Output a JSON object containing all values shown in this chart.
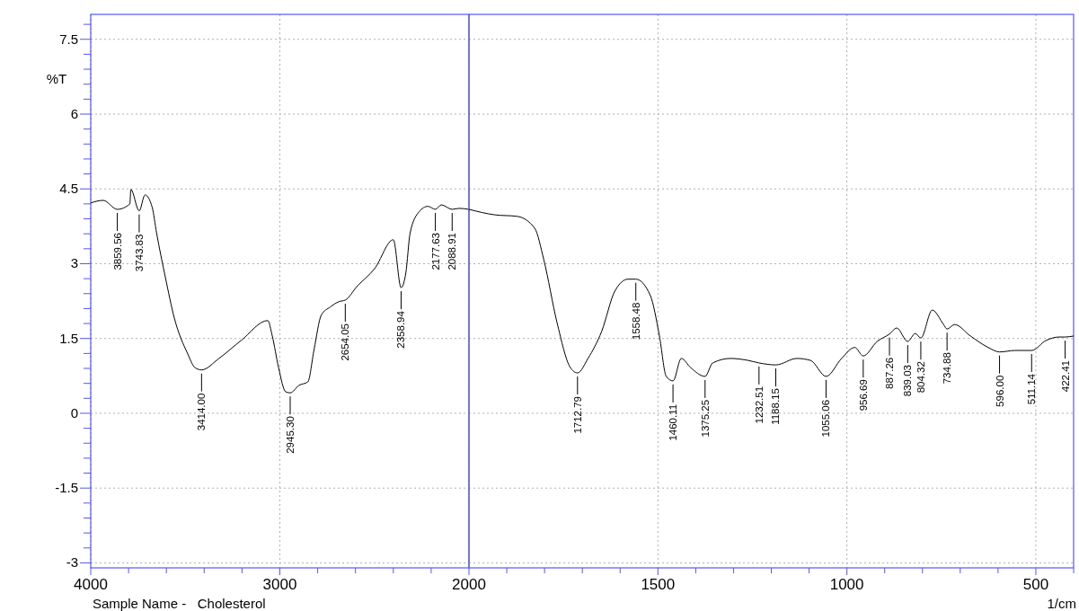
{
  "chart_data": [
    {
      "type": "line",
      "ylabel": "%T",
      "xlim": [
        4000,
        2000
      ],
      "ylim": [
        -3.1,
        8.0
      ],
      "xticks": [
        4000,
        {
          "value": 3800,
          "label": null
        },
        {
          "value": 3600,
          "label": null
        },
        {
          "value": 3400,
          "label": null
        },
        {
          "value": 3200,
          "label": null
        },
        3000,
        {
          "value": 2800,
          "label": null
        },
        {
          "value": 2600,
          "label": null
        },
        {
          "value": 2400,
          "label": null
        },
        {
          "value": 2200,
          "label": null
        }
      ],
      "yticks": [
        {
          "value": -3,
          "label": "-3"
        },
        {
          "value": -2.7,
          "label": null
        },
        {
          "value": -2.4,
          "label": null
        },
        {
          "value": -2.1,
          "label": null
        },
        {
          "value": -1.8,
          "label": null
        },
        -1.5,
        {
          "value": -1.2,
          "label": null
        },
        {
          "value": -0.9,
          "label": null
        },
        {
          "value": -0.6,
          "label": null
        },
        {
          "value": -0.3,
          "label": null
        },
        0,
        {
          "value": 0.3,
          "label": null
        },
        {
          "value": 0.6,
          "label": null
        },
        {
          "value": 0.9,
          "label": null
        },
        {
          "value": 1.2,
          "label": null
        },
        1.5,
        {
          "value": 1.8,
          "label": null
        },
        {
          "value": 2.1,
          "label": null
        },
        {
          "value": 2.4,
          "label": null
        },
        {
          "value": 2.7,
          "label": null
        },
        3,
        {
          "value": 3.3,
          "label": null
        },
        {
          "value": 3.6,
          "label": null
        },
        {
          "value": 3.9,
          "label": null
        },
        {
          "value": 4.2,
          "label": null
        },
        4.5,
        {
          "value": 4.8,
          "label": null
        },
        {
          "value": 5.1,
          "label": null
        },
        {
          "value": 5.4,
          "label": null
        },
        {
          "value": 5.7,
          "label": null
        },
        6,
        {
          "value": 6.3,
          "label": null
        },
        {
          "value": 6.6,
          "label": null
        },
        {
          "value": 6.9,
          "label": null
        },
        {
          "value": 7.2,
          "label": null
        },
        7.5,
        {
          "value": 7.8,
          "label": null
        }
      ],
      "grid": true,
      "marker": "none",
      "line_style": "solid",
      "series": [
        {
          "color": "#000000",
          "x": [
            4000,
            3934,
            3859.56,
            3793,
            3788,
            3743.83,
            3713,
            3675,
            3652,
            3605,
            3558,
            3487,
            3450,
            3414,
            3322,
            3205,
            3064,
            3040,
            3007,
            2969,
            2945.3,
            2899,
            2852,
            2819,
            2781,
            2734,
            2687,
            2654.05,
            2593,
            2499,
            2400,
            2358.94,
            2334,
            2311,
            2264,
            2217,
            2177.63,
            2146,
            2088.91,
            2052,
            2000
          ],
          "values": [
            4.22,
            4.27,
            4.09,
            4.2,
            4.49,
            4.06,
            4.38,
            4.13,
            3.62,
            2.72,
            1.91,
            1.19,
            0.92,
            0.87,
            1.1,
            1.46,
            1.86,
            1.55,
            0.92,
            0.43,
            0.41,
            0.56,
            0.63,
            1.28,
            1.97,
            2.13,
            2.24,
            2.27,
            2.54,
            2.9,
            3.48,
            2.52,
            2.81,
            3.62,
            4.04,
            4.15,
            4.09,
            4.18,
            4.09,
            4.11,
            4.09
          ]
        }
      ],
      "annotations": [
        {
          "text": "3859.56",
          "x": 3859.56,
          "y": 4.09
        },
        {
          "text": "3743.83",
          "x": 3743.83,
          "y": 4.06
        },
        {
          "text": "3414.00",
          "x": 3414,
          "y": 0.87
        },
        {
          "text": "2945.30",
          "x": 2945.3,
          "y": 0.41
        },
        {
          "text": "2654.05",
          "x": 2654.05,
          "y": 2.27
        },
        {
          "text": "2358.94",
          "x": 2358.94,
          "y": 2.52
        },
        {
          "text": "2177.63",
          "x": 2177.63,
          "y": 4.09
        },
        {
          "text": "2088.91",
          "x": 2088.91,
          "y": 4.09
        },
        "Sample Name -   Cholesterol"
      ]
    },
    {
      "type": "line",
      "xlabel": "1/cm",
      "xlim": [
        2000,
        400
      ],
      "ylim": [
        -3.1,
        8.0
      ],
      "tick_labels": "x",
      "xticks": [
        2000,
        {
          "value": 1900,
          "label": null
        },
        {
          "value": 1800,
          "label": null
        },
        {
          "value": 1700,
          "label": null
        },
        {
          "value": 1600,
          "label": null
        },
        1500,
        {
          "value": 1400,
          "label": null
        },
        {
          "value": 1300,
          "label": null
        },
        {
          "value": 1200,
          "label": null
        },
        {
          "value": 1100,
          "label": null
        },
        1000,
        {
          "value": 900,
          "label": null
        },
        {
          "value": 800,
          "label": null
        },
        {
          "value": 700,
          "label": null
        },
        {
          "value": 600,
          "label": null
        },
        500,
        {
          "value": 400,
          "label": null
        }
      ],
      "yticks": [
        -3,
        -1.5,
        0,
        1.5,
        3,
        4.5,
        6,
        7.5
      ],
      "grid": true,
      "marker": "none",
      "line_style": "solid",
      "series": [
        {
          "color": "#000000",
          "x": [
            2000,
            1932,
            1873,
            1826,
            1802,
            1767,
            1732,
            1712.79,
            1685,
            1649,
            1614,
            1579,
            1558.48,
            1520,
            1496,
            1478,
            1460.11,
            1438,
            1414,
            1375.25,
            1355,
            1308,
            1261,
            1232.51,
            1188.15,
            1132,
            1096,
            1055.06,
            1014,
            979,
            956.69,
            920,
            887.26,
            868,
            839.03,
            819,
            804.32,
            774,
            744,
            734.88,
            715,
            673,
            626,
            596,
            555,
            511.14,
            473,
            438,
            422.41,
            400
          ],
          "values": [
            4.09,
            3.98,
            3.95,
            3.71,
            3.08,
            1.82,
            0.92,
            0.81,
            1.1,
            1.64,
            2.45,
            2.69,
            2.69,
            2.36,
            1.55,
            0.74,
            0.65,
            1.1,
            0.92,
            0.74,
            1.01,
            1.1,
            1.06,
            1.01,
            0.97,
            1.1,
            1.06,
            0.74,
            1.1,
            1.32,
            1.15,
            1.44,
            1.59,
            1.71,
            1.44,
            1.6,
            1.51,
            2.07,
            1.78,
            1.69,
            1.78,
            1.55,
            1.32,
            1.23,
            1.26,
            1.26,
            1.46,
            1.53,
            1.53,
            1.55
          ]
        }
      ],
      "annotations": [
        {
          "text": "1712.79",
          "x": 1712.79,
          "y": 0.81
        },
        {
          "text": "1558.48",
          "x": 1558.48,
          "y": 2.69
        },
        {
          "text": "1460.11",
          "x": 1460.11,
          "y": 0.65
        },
        {
          "text": "1375.25",
          "x": 1375.25,
          "y": 0.74
        },
        {
          "text": "1232.51",
          "x": 1232.51,
          "y": 1.01
        },
        {
          "text": "1188.15",
          "x": 1188.15,
          "y": 0.97
        },
        {
          "text": "1055.06",
          "x": 1055.06,
          "y": 0.74
        },
        {
          "text": "956.69",
          "x": 956.69,
          "y": 1.15
        },
        {
          "text": "887.26",
          "x": 887.26,
          "y": 1.59
        },
        {
          "text": "839.03",
          "x": 839.03,
          "y": 1.44
        },
        {
          "text": "804.32",
          "x": 804.32,
          "y": 1.51
        },
        {
          "text": "734.88",
          "x": 734.88,
          "y": 1.69
        },
        {
          "text": "596.00",
          "x": 596,
          "y": 1.23
        },
        {
          "text": "511.14",
          "x": 511.14,
          "y": 1.26
        },
        {
          "text": "422.41",
          "x": 422.41,
          "y": 1.53
        }
      ]
    }
  ]
}
